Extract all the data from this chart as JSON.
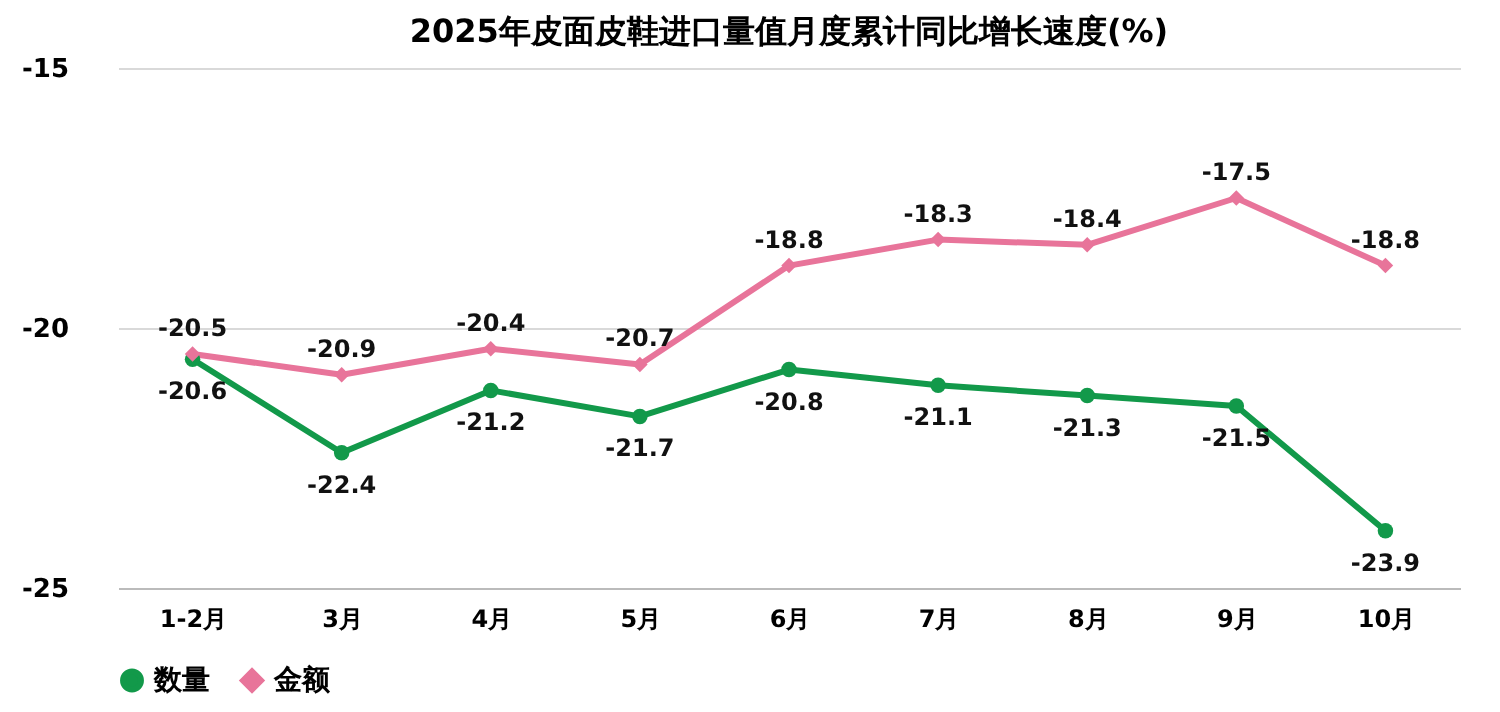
{
  "chart_data": {
    "type": "line",
    "title": "2025年皮面皮鞋进口量值月度累计同比增长速度(%)",
    "categories": [
      "1-2月",
      "3月",
      "4月",
      "5月",
      "6月",
      "7月",
      "8月",
      "9月",
      "10月"
    ],
    "series": [
      {
        "name": "数量",
        "color": "#12994a",
        "marker": "circle",
        "values": [
          -20.6,
          -22.4,
          -21.2,
          -21.7,
          -20.8,
          -21.1,
          -21.3,
          -21.5,
          -23.9
        ]
      },
      {
        "name": "金额",
        "color": "#e8749a",
        "marker": "diamond",
        "values": [
          -20.5,
          -20.9,
          -20.4,
          -20.7,
          -18.8,
          -18.3,
          -18.4,
          -17.5,
          -18.8
        ]
      }
    ],
    "ylim": [
      -25,
      -15
    ],
    "yticks": [
      -25,
      -20,
      -15
    ],
    "grid": "y",
    "legend": "bottom",
    "data_labels": true,
    "line_style": "solid"
  }
}
